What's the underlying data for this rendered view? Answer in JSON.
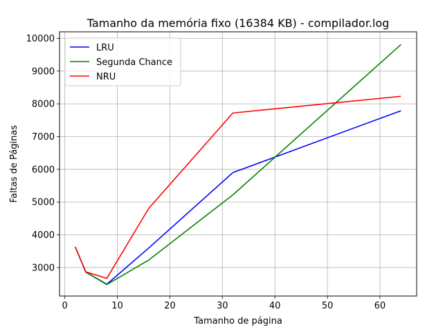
{
  "chart_data": {
    "type": "line",
    "title": "Tamanho da memória fixo (16384 KB) - compilador.log",
    "xlabel": "Tamanho de página",
    "ylabel": "Faltas de Páginas",
    "xlim": [
      -1,
      67
    ],
    "ylim": [
      2130,
      10200
    ],
    "xticks": [
      0,
      10,
      20,
      30,
      40,
      50,
      60
    ],
    "yticks": [
      3000,
      4000,
      5000,
      6000,
      7000,
      8000,
      9000,
      10000
    ],
    "grid": true,
    "legend_position": "upper-left",
    "x": [
      2,
      4,
      8,
      16,
      32,
      64
    ],
    "series": [
      {
        "name": "LRU",
        "color": "#0000ff",
        "values": [
          3630,
          2860,
          2490,
          3600,
          5900,
          7790
        ]
      },
      {
        "name": "Segunda Chance",
        "color": "#008000",
        "values": [
          3630,
          2860,
          2480,
          3230,
          5220,
          9810
        ]
      },
      {
        "name": "NRU",
        "color": "#ff0000",
        "values": [
          3630,
          2870,
          2670,
          4810,
          7720,
          8230
        ]
      }
    ]
  }
}
